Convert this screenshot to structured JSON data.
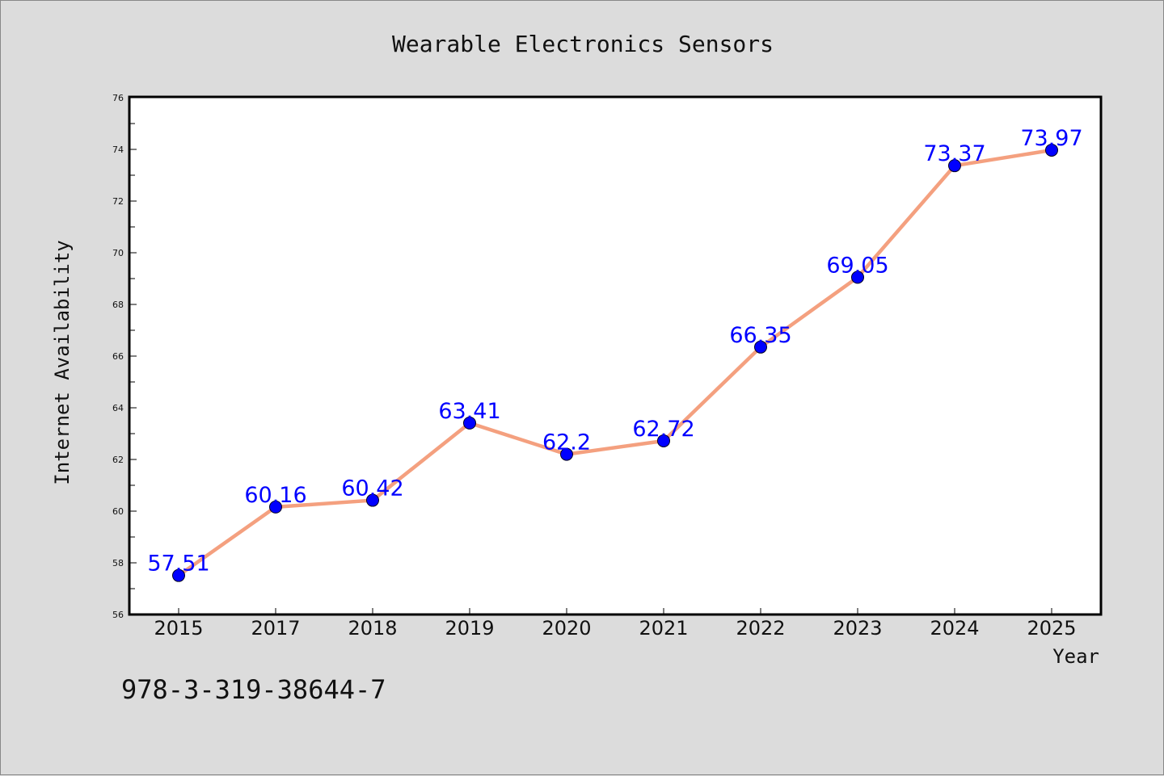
{
  "chart_data": {
    "type": "line",
    "title": "Wearable Electronics Sensors",
    "xlabel": "Year",
    "ylabel": "Internet Availability",
    "categories": [
      "2015",
      "2017",
      "2018",
      "2019",
      "2020",
      "2021",
      "2022",
      "2023",
      "2024",
      "2025"
    ],
    "series": [
      {
        "values": [
          57.51,
          60.16,
          60.42,
          63.41,
          62.2,
          62.72,
          66.35,
          69.05,
          73.37,
          73.97
        ],
        "labels": [
          "57.51",
          "60.16",
          "60.42",
          "63.41",
          "62.2",
          "62.72",
          "66.35",
          "69.05",
          "73.37",
          "73.97"
        ]
      }
    ],
    "ylim": [
      56,
      76
    ],
    "yticks": [
      56,
      58,
      60,
      62,
      64,
      66,
      68,
      70,
      72,
      74,
      76
    ],
    "grid": false,
    "legend": "none",
    "colors": {
      "line": "#f4a07f",
      "marker": "#0000ff",
      "data_label": "#0000ff",
      "background": "#dcdcdc",
      "plot_background": "#ffffff"
    }
  },
  "footer": {
    "identifier": "978-3-319-38644-7"
  }
}
